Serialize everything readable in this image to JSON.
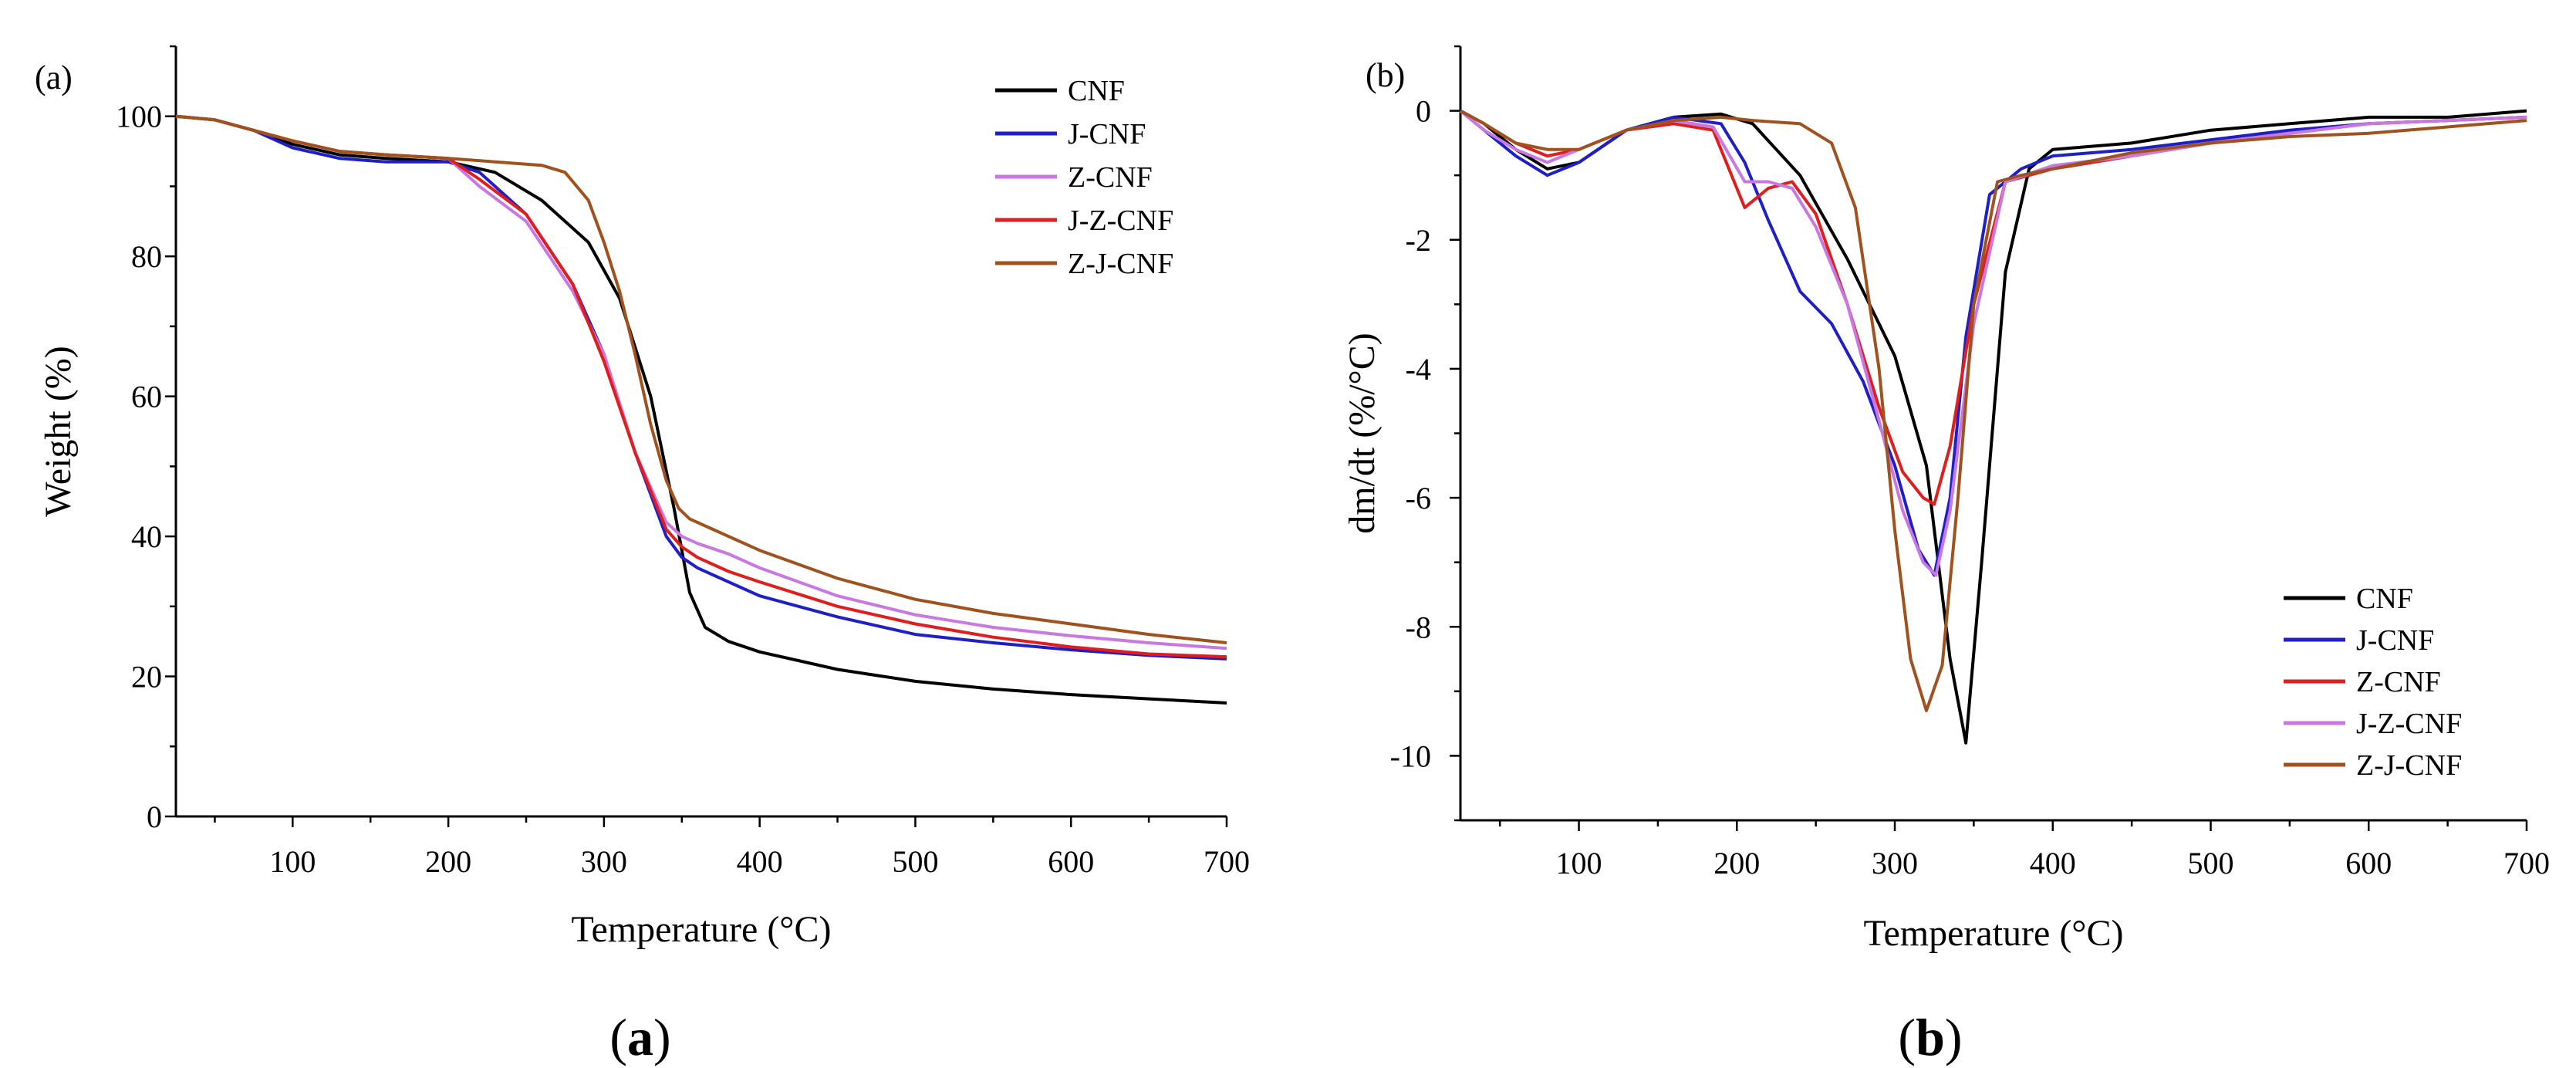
{
  "captions": {
    "a": "a",
    "b": "b"
  },
  "chart_data": [
    {
      "type": "line",
      "panel_label": "(a)",
      "title": "",
      "xlabel": "Temperature (°C)",
      "ylabel": "Weight (%)",
      "xlim": [
        25,
        700
      ],
      "ylim": [
        0,
        110
      ],
      "xticks": [
        100,
        200,
        300,
        400,
        500,
        600,
        700
      ],
      "yticks": [
        0,
        20,
        40,
        60,
        80,
        100
      ],
      "legend": "top-right",
      "series": [
        {
          "name": "CNF",
          "color": "#000000",
          "x": [
            25,
            50,
            75,
            100,
            130,
            160,
            200,
            230,
            260,
            290,
            310,
            330,
            345,
            355,
            365,
            380,
            400,
            450,
            500,
            550,
            600,
            650,
            700
          ],
          "y": [
            100,
            99.5,
            98,
            96,
            94.5,
            94,
            93.5,
            92,
            88,
            82,
            74,
            60,
            44,
            32,
            27,
            25,
            23.5,
            21,
            19.3,
            18.2,
            17.4,
            16.8,
            16.2
          ]
        },
        {
          "name": "J-CNF",
          "color": "#1f1fc8",
          "x": [
            25,
            50,
            75,
            100,
            130,
            160,
            200,
            220,
            250,
            280,
            300,
            320,
            340,
            350,
            360,
            380,
            400,
            450,
            500,
            550,
            600,
            650,
            700
          ],
          "y": [
            100,
            99.5,
            98,
            95.5,
            94,
            93.5,
            93.5,
            92,
            86,
            76,
            66,
            52,
            40,
            37,
            35.5,
            33.5,
            31.5,
            28.5,
            26,
            24.8,
            23.8,
            23,
            22.5
          ]
        },
        {
          "name": "Z-CNF",
          "color": "#c878e0",
          "x": [
            25,
            50,
            75,
            100,
            130,
            160,
            200,
            220,
            250,
            280,
            300,
            320,
            340,
            350,
            360,
            380,
            400,
            450,
            500,
            550,
            600,
            650,
            700
          ],
          "y": [
            100,
            99.5,
            98,
            96.5,
            95,
            94.5,
            94,
            90,
            85,
            75,
            66,
            52,
            42,
            40,
            39,
            37.5,
            35.5,
            31.5,
            28.8,
            27,
            25.8,
            24.8,
            24
          ]
        },
        {
          "name": "J-Z-CNF",
          "color": "#e01e1e",
          "x": [
            25,
            50,
            75,
            100,
            130,
            160,
            200,
            220,
            250,
            280,
            300,
            320,
            340,
            350,
            360,
            380,
            400,
            450,
            500,
            550,
            600,
            650,
            700
          ],
          "y": [
            100,
            99.5,
            98,
            96.5,
            95,
            94.5,
            94,
            91,
            86,
            76,
            65,
            52,
            41,
            38.5,
            37,
            35,
            33.5,
            30,
            27.5,
            25.6,
            24.2,
            23.2,
            22.8
          ]
        },
        {
          "name": "Z-J-CNF",
          "color": "#a0521e",
          "x": [
            25,
            50,
            75,
            100,
            130,
            160,
            200,
            230,
            260,
            275,
            290,
            300,
            310,
            320,
            330,
            340,
            348,
            355,
            370,
            400,
            450,
            500,
            550,
            600,
            650,
            700
          ],
          "y": [
            100,
            99.5,
            98,
            96.5,
            95,
            94.5,
            94,
            93.5,
            93,
            92,
            88,
            82,
            75,
            66,
            56,
            48,
            44,
            42.5,
            41,
            38,
            34,
            31,
            29,
            27.5,
            26,
            24.8
          ]
        }
      ]
    },
    {
      "type": "line",
      "panel_label": "(b)",
      "title": "",
      "xlabel": "Temperature (°C)",
      "ylabel": "dm/dt (%/°C)",
      "xlim": [
        25,
        700
      ],
      "ylim": [
        -11,
        1
      ],
      "xticks": [
        100,
        200,
        300,
        400,
        500,
        600,
        700
      ],
      "yticks": [
        0,
        -2,
        -4,
        -6,
        -8,
        -10
      ],
      "legend": "bottom-right",
      "series": [
        {
          "name": "CNF",
          "color": "#000000",
          "x": [
            25,
            40,
            60,
            80,
            100,
            130,
            160,
            190,
            210,
            240,
            270,
            300,
            320,
            335,
            345,
            355,
            370,
            385,
            400,
            450,
            500,
            550,
            600,
            650,
            700
          ],
          "y": [
            0,
            -0.2,
            -0.6,
            -0.9,
            -0.8,
            -0.3,
            -0.1,
            -0.05,
            -0.2,
            -1,
            -2.3,
            -3.8,
            -5.5,
            -8.5,
            -9.8,
            -7,
            -2.5,
            -0.9,
            -0.6,
            -0.5,
            -0.3,
            -0.2,
            -0.1,
            -0.1,
            0
          ]
        },
        {
          "name": "J-CNF",
          "color": "#1f1fc8",
          "x": [
            25,
            40,
            60,
            80,
            100,
            130,
            160,
            190,
            205,
            220,
            240,
            260,
            280,
            300,
            315,
            325,
            335,
            345,
            360,
            380,
            400,
            450,
            500,
            550,
            600,
            650,
            700
          ],
          "y": [
            0,
            -0.3,
            -0.7,
            -1,
            -0.8,
            -0.3,
            -0.1,
            -0.2,
            -0.8,
            -1.7,
            -2.8,
            -3.3,
            -4.2,
            -5.5,
            -6.8,
            -7.2,
            -6,
            -3.5,
            -1.3,
            -0.9,
            -0.7,
            -0.6,
            -0.45,
            -0.3,
            -0.2,
            -0.15,
            -0.1
          ]
        },
        {
          "name": "Z-CNF",
          "color": "#e01e1e",
          "x": [
            25,
            40,
            60,
            80,
            100,
            130,
            160,
            185,
            205,
            220,
            235,
            250,
            270,
            290,
            305,
            318,
            325,
            335,
            350,
            370,
            400,
            450,
            500,
            550,
            600,
            650,
            700
          ],
          "y": [
            0,
            -0.2,
            -0.5,
            -0.7,
            -0.6,
            -0.3,
            -0.2,
            -0.3,
            -1.5,
            -1.2,
            -1.1,
            -1.6,
            -3,
            -4.6,
            -5.6,
            -6,
            -6.1,
            -5.2,
            -3,
            -1.1,
            -0.9,
            -0.7,
            -0.5,
            -0.35,
            -0.2,
            -0.15,
            -0.1
          ]
        },
        {
          "name": "J-Z-CNF",
          "color": "#c878e0",
          "x": [
            25,
            40,
            60,
            80,
            100,
            130,
            160,
            185,
            205,
            220,
            235,
            250,
            270,
            290,
            305,
            318,
            326,
            335,
            350,
            370,
            400,
            450,
            500,
            550,
            600,
            650,
            700
          ],
          "y": [
            0,
            -0.3,
            -0.6,
            -0.8,
            -0.6,
            -0.3,
            -0.15,
            -0.25,
            -1.1,
            -1.1,
            -1.2,
            -1.8,
            -3,
            -4.8,
            -6.2,
            -7,
            -7.2,
            -6.2,
            -3.3,
            -1.1,
            -0.85,
            -0.7,
            -0.5,
            -0.35,
            -0.2,
            -0.15,
            -0.1
          ]
        },
        {
          "name": "Z-J-CNF",
          "color": "#a0521e",
          "x": [
            25,
            40,
            60,
            80,
            100,
            130,
            160,
            190,
            210,
            240,
            260,
            275,
            290,
            300,
            310,
            320,
            330,
            340,
            350,
            365,
            380,
            400,
            450,
            500,
            550,
            600,
            650,
            700
          ],
          "y": [
            0,
            -0.2,
            -0.5,
            -0.6,
            -0.6,
            -0.3,
            -0.15,
            -0.1,
            -0.15,
            -0.2,
            -0.5,
            -1.5,
            -4,
            -6.5,
            -8.5,
            -9.3,
            -8.6,
            -6,
            -3,
            -1.1,
            -1,
            -0.9,
            -0.65,
            -0.5,
            -0.4,
            -0.35,
            -0.25,
            -0.15
          ]
        }
      ]
    }
  ]
}
